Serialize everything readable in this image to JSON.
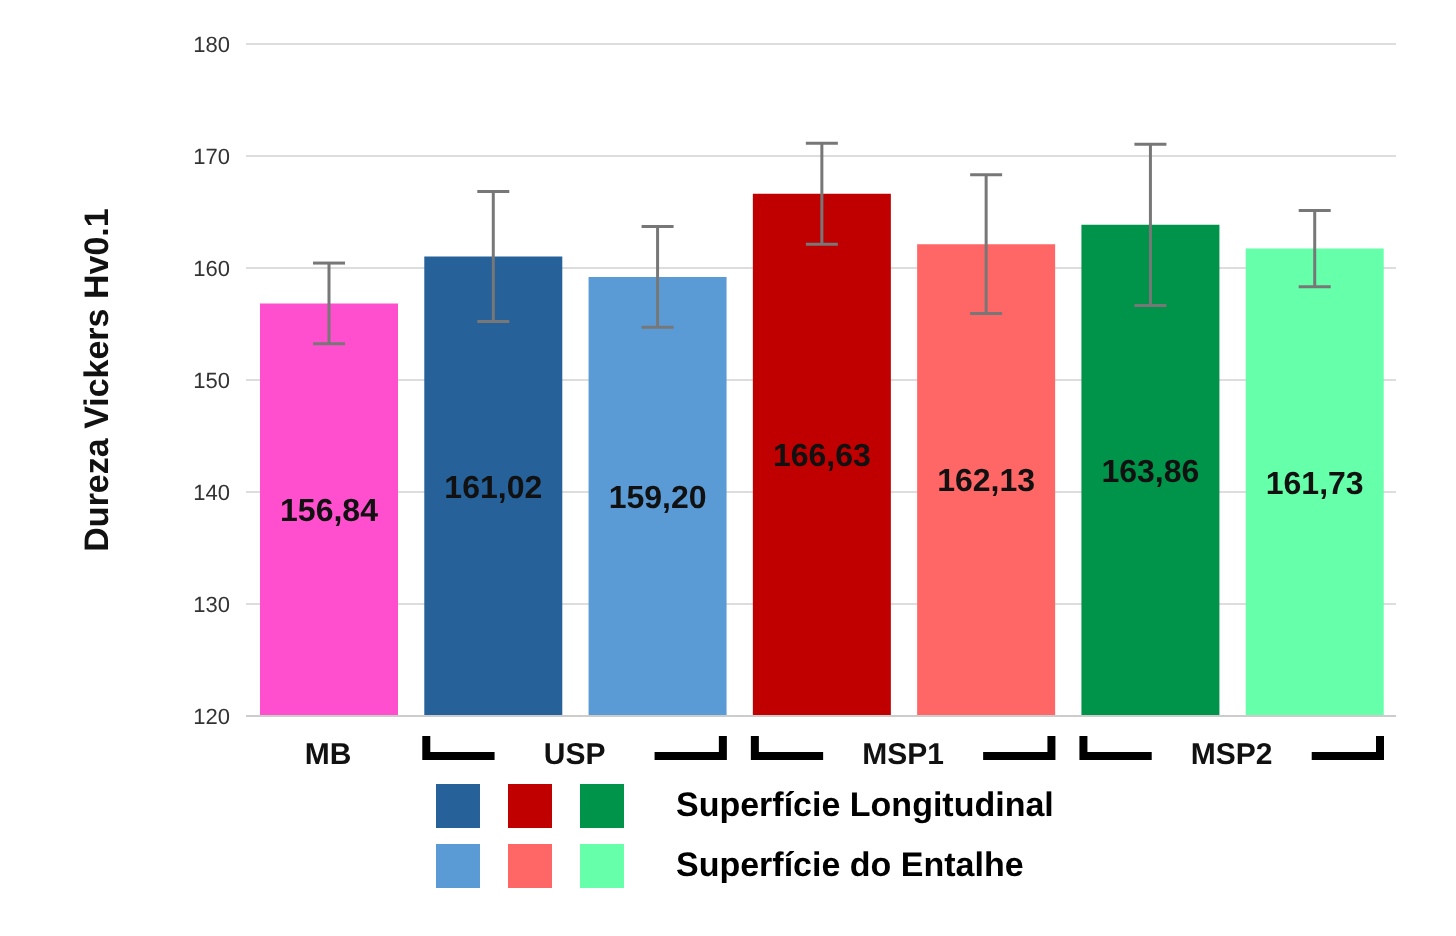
{
  "chart_data": {
    "type": "bar",
    "ylabel": "Dureza Vickers Hv0.1",
    "categories": [
      "MB",
      "USP",
      "MSP1",
      "MSP2"
    ],
    "series": [
      {
        "color": "#ff4fcf",
        "values": [
          156.84,
          null,
          null,
          null
        ],
        "errors": [
          3.6,
          null,
          null,
          null
        ],
        "value_labels": [
          "156,84",
          null,
          null,
          null
        ]
      },
      {
        "name": "Superfície Longitudinal",
        "colors": [
          null,
          "#26619a",
          "#c00000",
          "#00944a"
        ],
        "values": [
          null,
          161.02,
          166.63,
          163.86
        ],
        "errors": [
          null,
          5.8,
          4.5,
          7.2
        ],
        "value_labels": [
          null,
          "161,02",
          "166,63",
          "163,86"
        ]
      },
      {
        "name": "Superfície do Entalhe",
        "colors": [
          null,
          "#5b9bd5",
          "#ff6666",
          "#66ffaa"
        ],
        "values": [
          null,
          159.2,
          162.13,
          161.73
        ],
        "errors": [
          null,
          4.5,
          6.2,
          3.4
        ],
        "value_labels": [
          null,
          "159,20",
          "162,13",
          "161,73"
        ]
      }
    ],
    "ylim": [
      120,
      180
    ],
    "yticks": [
      120,
      130,
      140,
      150,
      160,
      170,
      180
    ],
    "grid": "y",
    "legend": "bottom"
  }
}
